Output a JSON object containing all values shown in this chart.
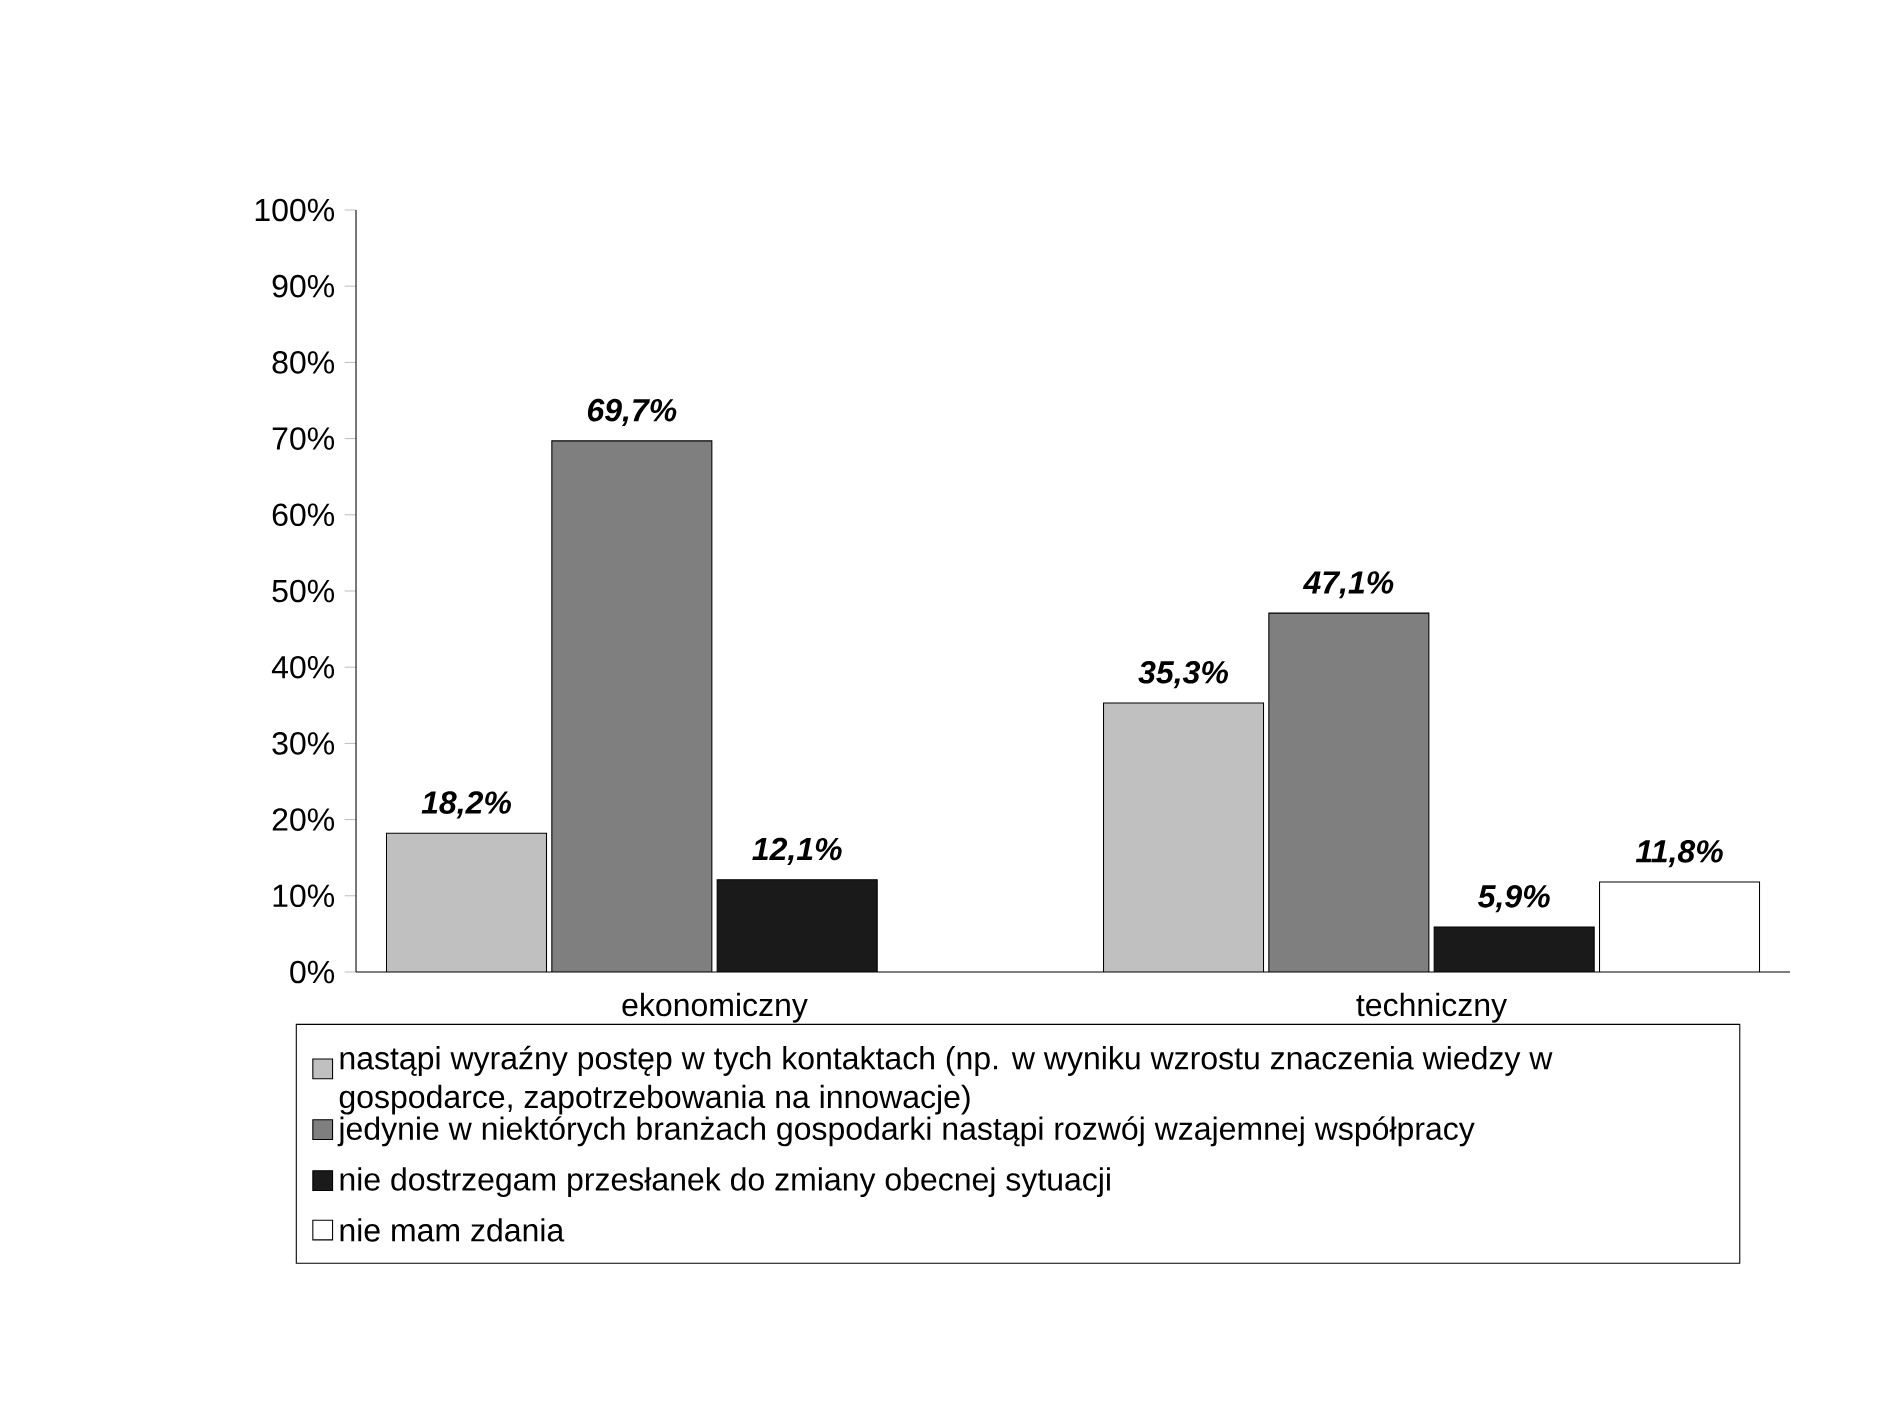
{
  "chart_data": {
    "type": "bar",
    "categories": [
      "ekonomiczny",
      "techniczny"
    ],
    "ylim": [
      0,
      100
    ],
    "yticks": [
      {
        "value": 0,
        "label": "0%"
      },
      {
        "value": 10,
        "label": "10%"
      },
      {
        "value": 20,
        "label": "20%"
      },
      {
        "value": 30,
        "label": "30%"
      },
      {
        "value": 40,
        "label": "40%"
      },
      {
        "value": 50,
        "label": "50%"
      },
      {
        "value": 60,
        "label": "60%"
      },
      {
        "value": 70,
        "label": "70%"
      },
      {
        "value": 80,
        "label": "80%"
      },
      {
        "value": 90,
        "label": "90%"
      },
      {
        "value": 100,
        "label": "100%"
      }
    ],
    "legend": "bottom",
    "series": [
      {
        "name": "nastąpi wyraźny postęp w tych kontaktach (np. w wyniku wzrostu znaczenia wiedzy w gospodarce, zapotrzebowania na innowacje)",
        "color": "#c0c0c0",
        "values": [
          18.2,
          35.3
        ],
        "value_labels": [
          "18,2%",
          "35,3%"
        ]
      },
      {
        "name": "jedynie w niektórych branżach gospodarki nastąpi rozwój wzajemnej współpracy",
        "color": "#7f7f7f",
        "values": [
          69.7,
          47.1
        ],
        "value_labels": [
          "69,7%",
          "47,1%"
        ]
      },
      {
        "name": "nie dostrzegam przesłanek do zmiany obecnej sytuacji",
        "color": "#1a1a1a",
        "values": [
          12.1,
          5.9
        ],
        "value_labels": [
          "12,1%",
          "5,9%"
        ]
      },
      {
        "name": "nie mam zdania",
        "color": "#ffffff",
        "values": [
          null,
          11.8
        ],
        "value_labels": [
          null,
          "11,8%"
        ]
      }
    ]
  }
}
